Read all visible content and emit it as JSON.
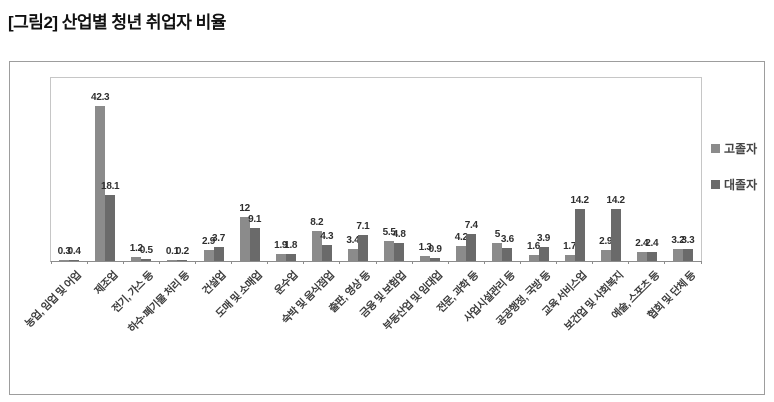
{
  "page": {
    "title": "[그림2] 산업별 청년 취업자 비율"
  },
  "chart_data": {
    "type": "bar",
    "title": "[그림2] 산업별 청년 취업자 비율",
    "categories": [
      "농업, 임업 및 어업",
      "제조업",
      "전기, 가스 등",
      "하수·폐기물 처리 등",
      "건설업",
      "도매 및 소매업",
      "운수업",
      "숙박 및 음식점업",
      "출판, 영상 등",
      "금융 및 보험업",
      "부동산업 및 임대업",
      "전문, 과학 등",
      "사업시설관리 등",
      "공공행정, 국방 등",
      "교육 서비스업",
      "보건업 및 사회복지",
      "예술, 스포츠 등",
      "협회 및 단체 등"
    ],
    "series": [
      {
        "name": "고졸자",
        "color": "#8b8b8b",
        "values": [
          0.3,
          42.3,
          1.2,
          0.1,
          2.9,
          12,
          1.9,
          8.2,
          3.4,
          5.5,
          1.3,
          4.2,
          5,
          1.6,
          1.7,
          2.9,
          2.4,
          3.2
        ]
      },
      {
        "name": "대졸자",
        "color": "#6a6a6a",
        "values": [
          0.4,
          18.1,
          0.5,
          0.2,
          3.7,
          9.1,
          1.8,
          4.3,
          7.1,
          4.8,
          0.9,
          7.4,
          3.6,
          3.9,
          14.2,
          14.2,
          2.4,
          3.3
        ]
      }
    ],
    "value_labels_shown": true,
    "xlabel": "",
    "ylabel": "",
    "ylim": [
      0,
      50
    ],
    "grid": false,
    "y_axis_labels_visible": false,
    "legend_position": "right",
    "axis_color": "#8c8c8c",
    "plot_border_color": "#c6c6c6"
  }
}
